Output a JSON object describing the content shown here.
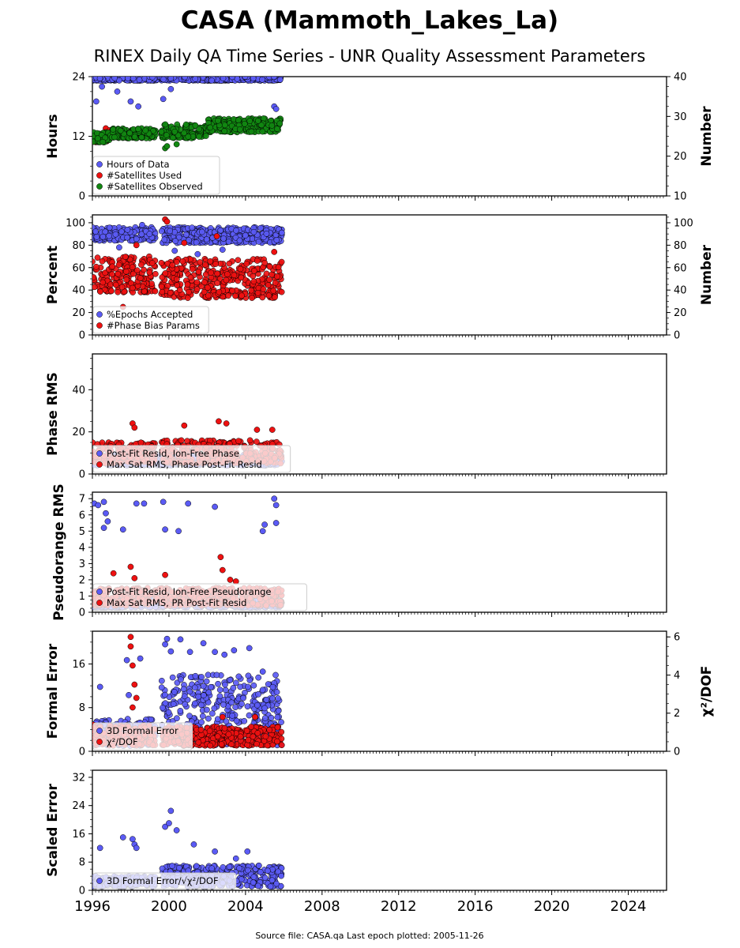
{
  "title": "CASA (Mammoth_Lakes_La)",
  "subtitle": "RINEX Daily QA Time Series - UNR Quality Assessment Parameters",
  "footer": "Source file: CASA.qa Last epoch plotted: 2005-11-26",
  "colors": {
    "blue": "#5b5bf5",
    "red": "#ee1111",
    "green": "#118811"
  },
  "chart_data": [
    {
      "type": "scatter",
      "ylabel": "Hours",
      "ylabel2": "Number",
      "xlim": [
        1996,
        2026
      ],
      "ylim": [
        0,
        24
      ],
      "ylim2": [
        10,
        40
      ],
      "yticks": [
        "0",
        "12",
        "24"
      ],
      "yticks2": [
        "10",
        "20",
        "30",
        "40"
      ],
      "series": [
        {
          "name": "Hours of Data",
          "color": "blue",
          "axis": "left",
          "bands": [
            {
              "x": [
                1996.0,
                1999.4
              ],
              "y": [
                23.2,
                24.0
              ]
            },
            {
              "x": [
                1999.6,
                2005.9
              ],
              "y": [
                23.2,
                24.0
              ]
            }
          ],
          "outliers": [
            [
              1996.2,
              19
            ],
            [
              1996.5,
              22
            ],
            [
              1997.3,
              21
            ],
            [
              1998.0,
              19
            ],
            [
              1998.4,
              18
            ],
            [
              1999.7,
              19.5
            ],
            [
              2000.1,
              21.5
            ],
            [
              2005.5,
              18
            ],
            [
              2005.6,
              17.5
            ]
          ]
        },
        {
          "name": "#Satellites Used",
          "color": "red",
          "axis": "right",
          "bands": [
            {
              "x": [
                1996.0,
                1996.8
              ],
              "y": [
                23.5,
                25.5
              ]
            }
          ],
          "outliers": [
            [
              1996.7,
              27
            ],
            [
              1996.9,
              26.5
            ]
          ]
        },
        {
          "name": "#Satellites Observed",
          "color": "green",
          "axis": "right",
          "bands": [
            {
              "x": [
                1996.0,
                1997.0
              ],
              "y": [
                23.5,
                26
              ]
            },
            {
              "x": [
                1997.0,
                1999.3
              ],
              "y": [
                24.5,
                27
              ]
            },
            {
              "x": [
                1999.6,
                2002.0
              ],
              "y": [
                24.5,
                28
              ]
            },
            {
              "x": [
                2002.0,
                2005.9
              ],
              "y": [
                26,
                29.5
              ]
            }
          ],
          "outliers": [
            [
              1999.8,
              22
            ],
            [
              1999.9,
              22.5
            ],
            [
              2000.4,
              23
            ]
          ]
        }
      ]
    },
    {
      "type": "scatter",
      "ylabel": "Percent",
      "ylabel2": "Number",
      "xlim": [
        1996,
        2026
      ],
      "ylim": [
        0,
        107
      ],
      "ylim2": [
        0,
        107
      ],
      "yticks": [
        "0",
        "20",
        "40",
        "60",
        "80",
        "100"
      ],
      "yticks2": [
        "0",
        "20",
        "40",
        "60",
        "80",
        "100"
      ],
      "series": [
        {
          "name": "%Epochs Accepted",
          "color": "blue",
          "axis": "left",
          "bands": [
            {
              "x": [
                1996.0,
                1999.3
              ],
              "y": [
                84,
                96
              ]
            },
            {
              "x": [
                1999.6,
                2005.9
              ],
              "y": [
                82,
                96
              ]
            }
          ],
          "outliers": [
            [
              1997.4,
              78
            ],
            [
              1998.6,
              98
            ],
            [
              2000.3,
              75
            ],
            [
              2001.5,
              72
            ],
            [
              2002.8,
              76
            ]
          ]
        },
        {
          "name": "#Phase Bias Params",
          "color": "red",
          "axis": "right",
          "bands": [
            {
              "x": [
                1996.0,
                1999.3
              ],
              "y": [
                38,
                70
              ]
            },
            {
              "x": [
                1999.6,
                2005.9
              ],
              "y": [
                33,
                68
              ]
            }
          ],
          "outliers": [
            [
              1997.6,
              25
            ],
            [
              1998.3,
              80
            ],
            [
              1999.8,
              103
            ],
            [
              1999.9,
              101
            ],
            [
              2000.8,
              82
            ],
            [
              2002.5,
              88
            ],
            [
              2003.8,
              35
            ],
            [
              2005.5,
              74
            ]
          ]
        }
      ]
    },
    {
      "type": "scatter",
      "ylabel": "Phase RMS",
      "xlim": [
        1996,
        2026
      ],
      "ylim": [
        0,
        57
      ],
      "yticks": [
        "0",
        "20",
        "40"
      ],
      "series": [
        {
          "name": "Post-Fit Resid, Ion-Free Phase",
          "color": "blue",
          "axis": "left",
          "bands": [
            {
              "x": [
                1996.0,
                2005.9
              ],
              "y": [
                4,
                9
              ]
            }
          ],
          "outliers": [
            [
              2005.9,
              6
            ]
          ]
        },
        {
          "name": "Max Sat RMS, Phase Post-Fit Resid",
          "color": "red",
          "axis": "left",
          "bands": [
            {
              "x": [
                1996.0,
                1999.3
              ],
              "y": [
                5,
                15
              ]
            },
            {
              "x": [
                1999.6,
                2005.9
              ],
              "y": [
                5,
                16
              ]
            }
          ],
          "outliers": [
            [
              1998.1,
              24
            ],
            [
              1998.2,
              22
            ],
            [
              2000.8,
              23
            ],
            [
              2002.6,
              25
            ],
            [
              2003.0,
              24
            ],
            [
              2004.6,
              21
            ],
            [
              2005.4,
              21
            ]
          ]
        }
      ]
    },
    {
      "type": "scatter",
      "ylabel": "Pseudorange RMS",
      "xlim": [
        1996,
        2026
      ],
      "ylim": [
        0,
        7.4
      ],
      "yticks": [
        "0",
        "1",
        "2",
        "3",
        "4",
        "5",
        "6",
        "7"
      ],
      "series": [
        {
          "name": "Post-Fit Resid, Ion-Free Pseudorange",
          "color": "blue",
          "axis": "left",
          "bands": [
            {
              "x": [
                1996.0,
                2005.9
              ],
              "y": [
                0.3,
                0.8
              ]
            }
          ],
          "outliers": [
            [
              1996.1,
              6.7
            ],
            [
              1996.3,
              6.6
            ],
            [
              1996.6,
              6.8
            ],
            [
              1996.7,
              6.1
            ],
            [
              1996.8,
              5.6
            ],
            [
              1996.6,
              5.2
            ],
            [
              1997.6,
              5.1
            ],
            [
              1998.3,
              6.7
            ],
            [
              1998.7,
              6.7
            ],
            [
              1999.7,
              6.8
            ],
            [
              1999.8,
              5.1
            ],
            [
              2000.5,
              5.0
            ],
            [
              2001.0,
              6.7
            ],
            [
              2002.4,
              6.5
            ],
            [
              2004.9,
              5.0
            ],
            [
              2005.0,
              5.4
            ],
            [
              2005.5,
              7.0
            ],
            [
              2005.6,
              6.6
            ],
            [
              2005.6,
              5.5
            ]
          ]
        },
        {
          "name": "Max Sat RMS, PR Post-Fit Resid",
          "color": "red",
          "axis": "left",
          "bands": [
            {
              "x": [
                1996.0,
                2005.9
              ],
              "y": [
                0.4,
                1.5
              ]
            }
          ],
          "outliers": [
            [
              1997.1,
              2.4
            ],
            [
              1998.0,
              2.8
            ],
            [
              1998.2,
              2.1
            ],
            [
              1999.8,
              2.3
            ],
            [
              2002.7,
              3.4
            ],
            [
              2002.8,
              2.6
            ],
            [
              2003.2,
              2.0
            ],
            [
              2003.5,
              1.9
            ]
          ]
        }
      ]
    },
    {
      "type": "scatter",
      "ylabel": "Formal Error",
      "ylabel2": "χ²/DOF",
      "xlim": [
        1996,
        2026
      ],
      "ylim": [
        0,
        22
      ],
      "ylim2": [
        0,
        6.3
      ],
      "yticks": [
        "0",
        "8",
        "16"
      ],
      "yticks2": [
        "0",
        "2",
        "4",
        "6"
      ],
      "series": [
        {
          "name": "3D Formal Error",
          "color": "blue",
          "axis": "left",
          "bands": [
            {
              "x": [
                1996.0,
                1999.3
              ],
              "y": [
                1,
                6
              ]
            },
            {
              "x": [
                1999.6,
                2005.9
              ],
              "y": [
                1,
                14
              ]
            }
          ],
          "outliers": [
            [
              1996.4,
              11.8
            ],
            [
              1997.8,
              16.7
            ],
            [
              1997.9,
              10.3
            ],
            [
              1998.5,
              17
            ],
            [
              1999.8,
              19.6
            ],
            [
              1999.9,
              20.6
            ],
            [
              2000.1,
              18.3
            ],
            [
              2000.6,
              20.5
            ],
            [
              2001.1,
              18.2
            ],
            [
              2001.8,
              19.8
            ],
            [
              2002.4,
              18.2
            ],
            [
              2002.9,
              17.7
            ],
            [
              2003.4,
              18.5
            ],
            [
              2004.2,
              18.9
            ],
            [
              2004.9,
              14.6
            ],
            [
              2005.0,
              7.9
            ]
          ]
        },
        {
          "name": "χ²/DOF",
          "color": "red",
          "axis": "right",
          "bands": [
            {
              "x": [
                1996.0,
                1999.3
              ],
              "y": [
                0.3,
                1.4
              ]
            },
            {
              "x": [
                1999.6,
                2005.9
              ],
              "y": [
                0.3,
                1.3
              ]
            }
          ],
          "outliers": [
            [
              1998.0,
              6.0
            ],
            [
              1998.0,
              5.5
            ],
            [
              1998.1,
              4.5
            ],
            [
              1998.2,
              3.5
            ],
            [
              1998.3,
              2.8
            ],
            [
              1998.1,
              2.3
            ],
            [
              2002.8,
              1.8
            ],
            [
              2004.5,
              1.8
            ]
          ]
        }
      ]
    },
    {
      "type": "scatter",
      "ylabel": "Scaled Error",
      "xlim": [
        1996,
        2026
      ],
      "ylim": [
        0,
        34
      ],
      "yticks": [
        "0",
        "8",
        "16",
        "24",
        "32"
      ],
      "xticks": [
        "1996",
        "2000",
        "2004",
        "2008",
        "2012",
        "2016",
        "2020",
        "2024"
      ],
      "series": [
        {
          "name": "3D Formal Error/√χ²/DOF",
          "color": "blue",
          "axis": "left",
          "bands": [
            {
              "x": [
                1996.0,
                1999.3
              ],
              "y": [
                1,
                4
              ]
            },
            {
              "x": [
                1999.6,
                2005.9
              ],
              "y": [
                1,
                7
              ]
            }
          ],
          "outliers": [
            [
              1996.4,
              12
            ],
            [
              1997.6,
              15
            ],
            [
              1998.1,
              14.5
            ],
            [
              1998.2,
              13
            ],
            [
              1998.3,
              12
            ],
            [
              1999.8,
              18
            ],
            [
              2000.1,
              22.5
            ],
            [
              2000.0,
              19
            ],
            [
              2000.4,
              17
            ],
            [
              2001.3,
              13
            ],
            [
              2002.4,
              11
            ],
            [
              2003.5,
              9
            ],
            [
              2004.1,
              11
            ],
            [
              2004.7,
              7
            ]
          ]
        }
      ]
    }
  ]
}
